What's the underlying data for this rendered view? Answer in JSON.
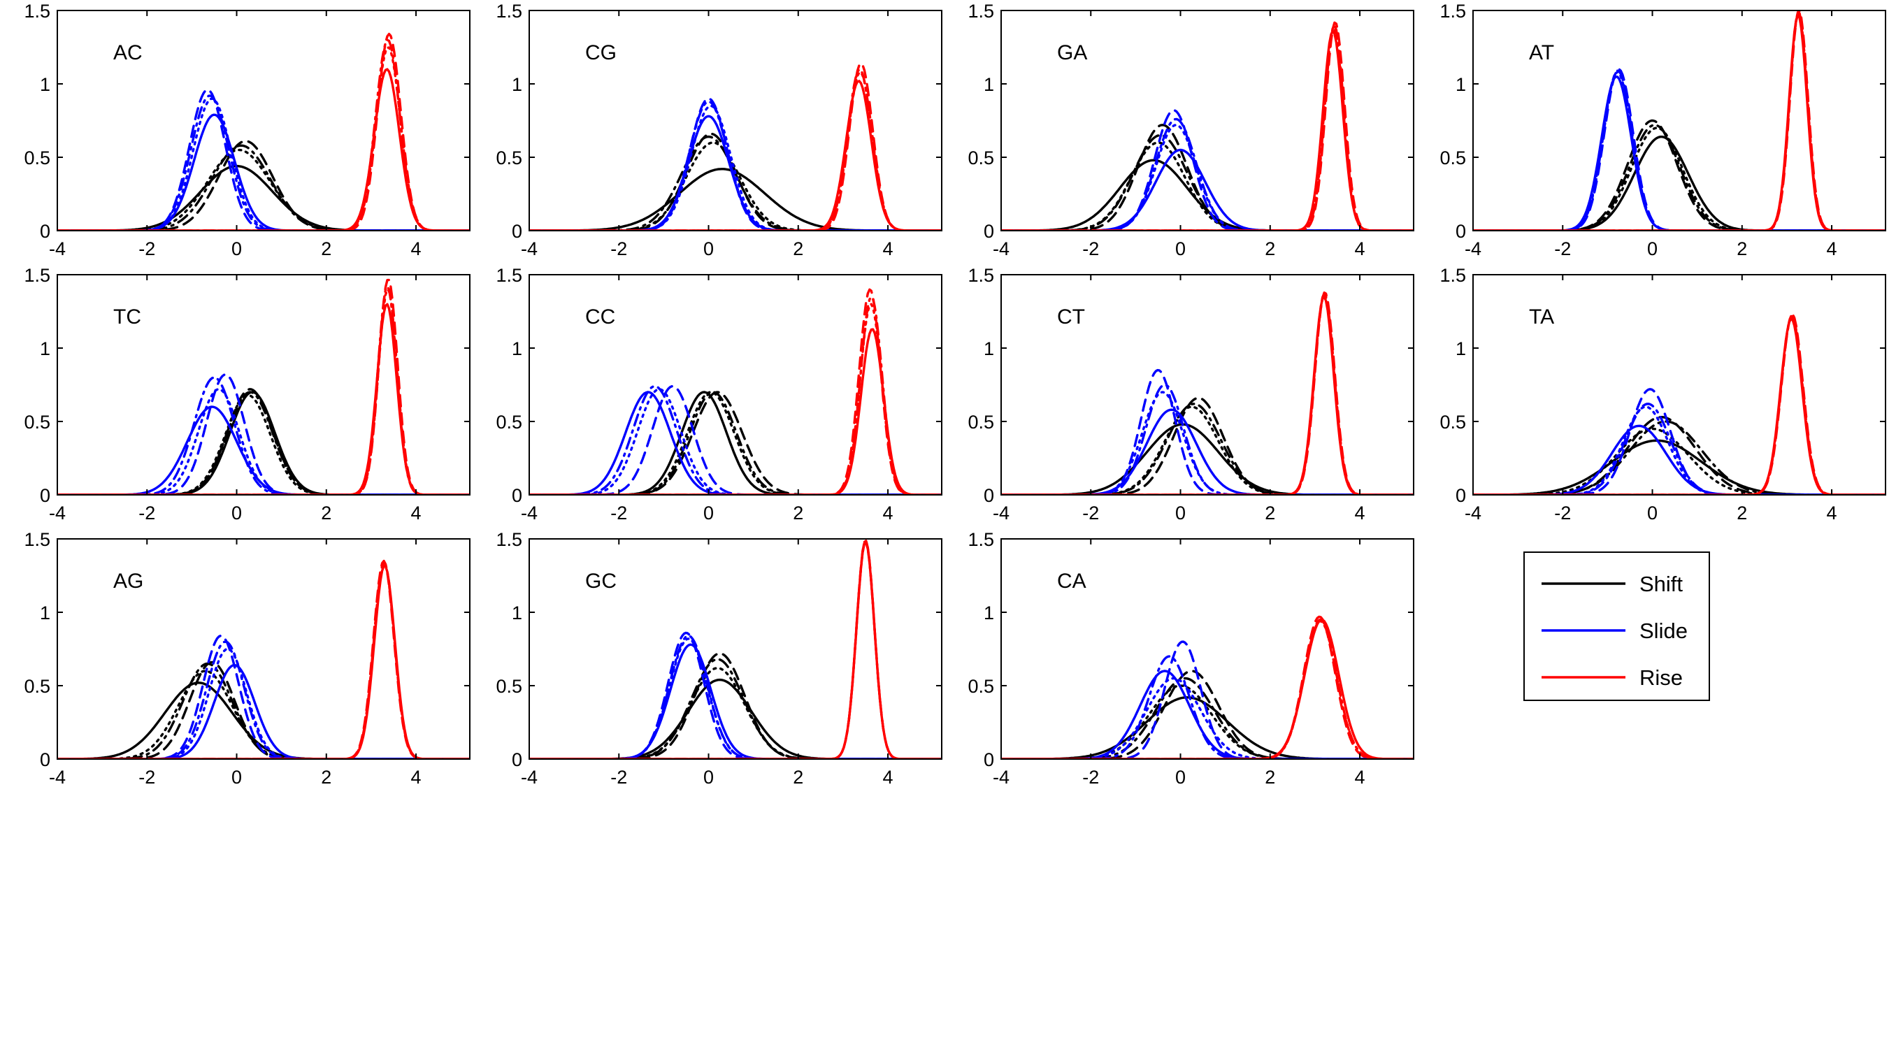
{
  "chart_data": {
    "type": "line",
    "layout": "small-multiples 3x4",
    "xlim": [
      -4,
      5.2
    ],
    "ylim": [
      0,
      1.5
    ],
    "xticks": [
      -4,
      -2,
      0,
      2,
      4
    ],
    "yticks": [
      0,
      0.5,
      1,
      1.5
    ],
    "ytick_labels": [
      "0",
      "0.5",
      "1",
      "1.5"
    ],
    "grid": false,
    "legend": {
      "placement": "bottom-right",
      "entries": [
        {
          "name": "Shift",
          "color": "#000000"
        },
        {
          "name": "Slide",
          "color": "#0000ff"
        },
        {
          "name": "Rise",
          "color": "#ff0000"
        }
      ]
    },
    "line_styles": [
      "solid",
      "dashed",
      "dotted",
      "dashdot"
    ],
    "panels": [
      {
        "title": "AC",
        "shift": {
          "mu": [
            0.0,
            0.2,
            0.05,
            0.1
          ],
          "sigma": [
            0.8,
            0.6,
            0.7,
            0.65
          ],
          "peak": [
            0.44,
            0.61,
            0.55,
            0.58
          ]
        },
        "slide": {
          "mu": [
            -0.5,
            -0.65,
            -0.55,
            -0.6
          ],
          "sigma": [
            0.45,
            0.4,
            0.42,
            0.42
          ],
          "peak": [
            0.79,
            0.96,
            0.9,
            0.92
          ]
        },
        "rise": {
          "mu": [
            3.35,
            3.4,
            3.38,
            3.37
          ],
          "sigma": [
            0.28,
            0.26,
            0.27,
            0.27
          ],
          "peak": [
            1.1,
            1.34,
            1.25,
            1.3
          ]
        }
      },
      {
        "title": "CG",
        "shift": {
          "mu": [
            0.3,
            0.05,
            0.1,
            0.0
          ],
          "sigma": [
            0.95,
            0.55,
            0.6,
            0.6
          ],
          "peak": [
            0.42,
            0.66,
            0.6,
            0.64
          ]
        },
        "slide": {
          "mu": [
            0.0,
            0.0,
            0.05,
            0.0
          ],
          "sigma": [
            0.45,
            0.42,
            0.44,
            0.43
          ],
          "peak": [
            0.78,
            0.9,
            0.85,
            0.88
          ]
        },
        "rise": {
          "mu": [
            3.35,
            3.4,
            3.38,
            3.37
          ],
          "sigma": [
            0.28,
            0.26,
            0.27,
            0.27
          ],
          "peak": [
            1.02,
            1.14,
            1.08,
            1.1
          ]
        }
      },
      {
        "title": "GA",
        "shift": {
          "mu": [
            -0.6,
            -0.4,
            -0.5,
            -0.45
          ],
          "sigma": [
            0.75,
            0.55,
            0.6,
            0.6
          ],
          "peak": [
            0.48,
            0.72,
            0.6,
            0.65
          ]
        },
        "slide": {
          "mu": [
            0.0,
            -0.15,
            -0.1,
            -0.1
          ],
          "sigma": [
            0.55,
            0.42,
            0.45,
            0.45
          ],
          "peak": [
            0.55,
            0.82,
            0.72,
            0.76
          ]
        },
        "rise": {
          "mu": [
            3.4,
            3.45,
            3.42,
            3.43
          ],
          "sigma": [
            0.22,
            0.21,
            0.21,
            0.21
          ],
          "peak": [
            1.36,
            1.42,
            1.38,
            1.4
          ]
        }
      },
      {
        "title": "AT",
        "shift": {
          "mu": [
            0.2,
            0.0,
            0.1,
            0.05
          ],
          "sigma": [
            0.6,
            0.55,
            0.57,
            0.56
          ],
          "peak": [
            0.64,
            0.75,
            0.7,
            0.72
          ]
        },
        "slide": {
          "mu": [
            -0.8,
            -0.75,
            -0.78,
            -0.77
          ],
          "sigma": [
            0.33,
            0.32,
            0.32,
            0.32
          ],
          "peak": [
            1.05,
            1.1,
            1.08,
            1.09
          ]
        },
        "rise": {
          "mu": [
            3.25,
            3.27,
            3.26,
            3.26
          ],
          "sigma": [
            0.2,
            0.2,
            0.2,
            0.2
          ],
          "peak": [
            1.47,
            1.5,
            1.48,
            1.49
          ]
        }
      },
      {
        "title": "TC",
        "shift": {
          "mu": [
            0.35,
            0.3,
            0.25,
            0.3
          ],
          "sigma": [
            0.5,
            0.5,
            0.5,
            0.5
          ],
          "peak": [
            0.7,
            0.72,
            0.68,
            0.7
          ]
        },
        "slide": {
          "mu": [
            -0.55,
            -0.25,
            -0.4,
            -0.5
          ],
          "sigma": [
            0.55,
            0.42,
            0.45,
            0.45
          ],
          "peak": [
            0.6,
            0.82,
            0.72,
            0.8
          ]
        },
        "rise": {
          "mu": [
            3.35,
            3.38,
            3.37,
            3.36
          ],
          "sigma": [
            0.22,
            0.21,
            0.21,
            0.21
          ],
          "peak": [
            1.3,
            1.47,
            1.4,
            1.42
          ]
        }
      },
      {
        "title": "CC",
        "shift": {
          "mu": [
            -0.1,
            0.2,
            0.05,
            0.1
          ],
          "sigma": [
            0.5,
            0.55,
            0.52,
            0.52
          ],
          "peak": [
            0.7,
            0.7,
            0.7,
            0.7
          ]
        },
        "slide": {
          "mu": [
            -1.35,
            -0.8,
            -1.1,
            -1.2
          ],
          "sigma": [
            0.5,
            0.45,
            0.48,
            0.48
          ],
          "peak": [
            0.7,
            0.74,
            0.72,
            0.74
          ]
        },
        "rise": {
          "mu": [
            3.65,
            3.6,
            3.62,
            3.63
          ],
          "sigma": [
            0.25,
            0.24,
            0.24,
            0.24
          ],
          "peak": [
            1.13,
            1.4,
            1.3,
            1.35
          ]
        }
      },
      {
        "title": "CT",
        "shift": {
          "mu": [
            0.05,
            0.4,
            0.25,
            0.3
          ],
          "sigma": [
            0.8,
            0.55,
            0.6,
            0.6
          ],
          "peak": [
            0.48,
            0.66,
            0.6,
            0.62
          ]
        },
        "slide": {
          "mu": [
            -0.2,
            -0.5,
            -0.4,
            -0.35
          ],
          "sigma": [
            0.55,
            0.38,
            0.45,
            0.42
          ],
          "peak": [
            0.58,
            0.85,
            0.7,
            0.75
          ]
        },
        "rise": {
          "mu": [
            3.2,
            3.22,
            3.21,
            3.21
          ],
          "sigma": [
            0.22,
            0.22,
            0.22,
            0.22
          ],
          "peak": [
            1.35,
            1.38,
            1.36,
            1.37
          ]
        }
      },
      {
        "title": "TA",
        "shift": {
          "mu": [
            0.1,
            0.2,
            0.0,
            0.3
          ],
          "sigma": [
            1.0,
            0.75,
            0.8,
            0.8
          ],
          "peak": [
            0.37,
            0.53,
            0.45,
            0.5
          ]
        },
        "slide": {
          "mu": [
            -0.3,
            -0.05,
            -0.15,
            -0.1
          ],
          "sigma": [
            0.6,
            0.45,
            0.5,
            0.5
          ],
          "peak": [
            0.47,
            0.72,
            0.6,
            0.62
          ]
        },
        "rise": {
          "mu": [
            3.1,
            3.12,
            3.11,
            3.11
          ],
          "sigma": [
            0.24,
            0.24,
            0.24,
            0.24
          ],
          "peak": [
            1.2,
            1.23,
            1.21,
            1.22
          ]
        }
      },
      {
        "title": "AG",
        "shift": {
          "mu": [
            -0.85,
            -0.55,
            -0.7,
            -0.65
          ],
          "sigma": [
            0.75,
            0.5,
            0.6,
            0.55
          ],
          "peak": [
            0.52,
            0.66,
            0.6,
            0.65
          ]
        },
        "slide": {
          "mu": [
            -0.05,
            -0.35,
            -0.2,
            -0.25
          ],
          "sigma": [
            0.45,
            0.4,
            0.42,
            0.42
          ],
          "peak": [
            0.64,
            0.84,
            0.75,
            0.8
          ]
        },
        "rise": {
          "mu": [
            3.3,
            3.28,
            3.29,
            3.29
          ],
          "sigma": [
            0.23,
            0.23,
            0.23,
            0.23
          ],
          "peak": [
            1.32,
            1.35,
            1.33,
            1.34
          ]
        }
      },
      {
        "title": "GC",
        "shift": {
          "mu": [
            0.25,
            0.25,
            0.2,
            0.2
          ],
          "sigma": [
            0.7,
            0.55,
            0.6,
            0.58
          ],
          "peak": [
            0.54,
            0.72,
            0.62,
            0.68
          ]
        },
        "slide": {
          "mu": [
            -0.4,
            -0.5,
            -0.45,
            -0.45
          ],
          "sigma": [
            0.45,
            0.4,
            0.42,
            0.42
          ],
          "peak": [
            0.78,
            0.86,
            0.82,
            0.84
          ]
        },
        "rise": {
          "mu": [
            3.5,
            3.5,
            3.5,
            3.5
          ],
          "sigma": [
            0.2,
            0.2,
            0.2,
            0.2
          ],
          "peak": [
            1.48,
            1.49,
            1.48,
            1.49
          ]
        }
      },
      {
        "title": "CA",
        "shift": {
          "mu": [
            0.15,
            0.25,
            0.0,
            0.1
          ],
          "sigma": [
            0.9,
            0.6,
            0.7,
            0.65
          ],
          "peak": [
            0.42,
            0.6,
            0.5,
            0.55
          ]
        },
        "slide": {
          "mu": [
            -0.35,
            0.05,
            -0.15,
            -0.25
          ],
          "sigma": [
            0.55,
            0.4,
            0.6,
            0.45
          ],
          "peak": [
            0.6,
            0.8,
            0.55,
            0.7
          ]
        },
        "rise": {
          "mu": [
            3.15,
            3.1,
            3.12,
            3.12
          ],
          "sigma": [
            0.38,
            0.35,
            0.36,
            0.36
          ],
          "peak": [
            0.95,
            0.97,
            0.94,
            0.95
          ]
        }
      }
    ]
  }
}
